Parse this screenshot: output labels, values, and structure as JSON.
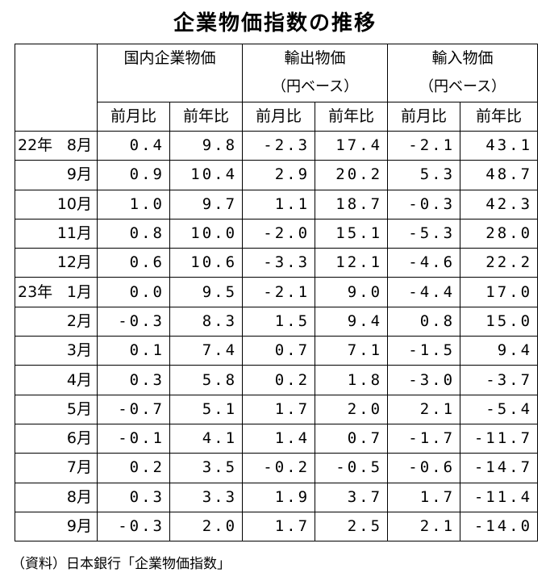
{
  "title": "企業物価指数の推移",
  "headers": {
    "domestic": "国内企業物価",
    "export": "輸出物価",
    "export_basis": "（円ベース）",
    "import": "輸入物価",
    "import_basis": "（円ベース）",
    "mom": "前月比",
    "yoy": "前年比"
  },
  "rows": [
    {
      "year": "22年",
      "month": "8月",
      "values": [
        "0.4",
        "9.8",
        "-2.3",
        "17.4",
        "-2.1",
        "43.1"
      ]
    },
    {
      "year": "",
      "month": "9月",
      "values": [
        "0.9",
        "10.4",
        "2.9",
        "20.2",
        "5.3",
        "48.7"
      ]
    },
    {
      "year": "",
      "month": "10月",
      "values": [
        "1.0",
        "9.7",
        "1.1",
        "18.7",
        "-0.3",
        "42.3"
      ]
    },
    {
      "year": "",
      "month": "11月",
      "values": [
        "0.8",
        "10.0",
        "-2.0",
        "15.1",
        "-5.3",
        "28.0"
      ]
    },
    {
      "year": "",
      "month": "12月",
      "values": [
        "0.6",
        "10.6",
        "-3.3",
        "12.1",
        "-4.6",
        "22.2"
      ]
    },
    {
      "year": "23年",
      "month": "1月",
      "values": [
        "0.0",
        "9.5",
        "-2.1",
        "9.0",
        "-4.4",
        "17.0"
      ]
    },
    {
      "year": "",
      "month": "2月",
      "values": [
        "-0.3",
        "8.3",
        "1.5",
        "9.4",
        "0.8",
        "15.0"
      ]
    },
    {
      "year": "",
      "month": "3月",
      "values": [
        "0.1",
        "7.4",
        "0.7",
        "7.1",
        "-1.5",
        "9.4"
      ]
    },
    {
      "year": "",
      "month": "4月",
      "values": [
        "0.3",
        "5.8",
        "0.2",
        "1.8",
        "-3.0",
        "-3.7"
      ]
    },
    {
      "year": "",
      "month": "5月",
      "values": [
        "-0.7",
        "5.1",
        "1.7",
        "2.0",
        "2.1",
        "-5.4"
      ]
    },
    {
      "year": "",
      "month": "6月",
      "values": [
        "-0.1",
        "4.1",
        "1.4",
        "0.7",
        "-1.7",
        "-11.7"
      ]
    },
    {
      "year": "",
      "month": "7月",
      "values": [
        "0.2",
        "3.5",
        "-0.2",
        "-0.5",
        "-0.6",
        "-14.7"
      ]
    },
    {
      "year": "",
      "month": "8月",
      "values": [
        "0.3",
        "3.3",
        "1.9",
        "3.7",
        "1.7",
        "-11.4"
      ]
    },
    {
      "year": "",
      "month": "9月",
      "values": [
        "-0.3",
        "2.0",
        "1.7",
        "2.5",
        "2.1",
        "-14.0"
      ]
    }
  ],
  "source": "（資料）日本銀行「企業物価指数」"
}
